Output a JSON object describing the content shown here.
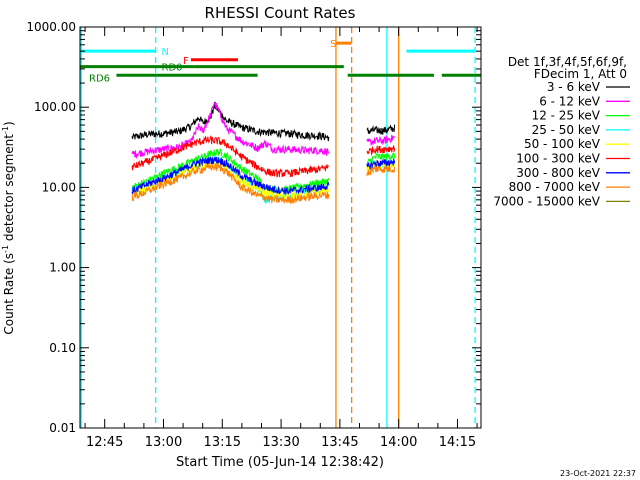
{
  "chart_data": {
    "type": "line",
    "title": "RHESSI Count Rates",
    "xlabel": "Start Time (05-Jun-14 12:38:42)",
    "ylabel_main": "Count Rate (s",
    "ylabel_sup": "-1",
    "ylabel_tail": " detector segment",
    "ylabel_sup2": "-1",
    "ylabel_close": ")",
    "ylim": [
      0.01,
      1000
    ],
    "yscale": "log",
    "y_ticks": [
      {
        "value": 0.01,
        "label": "0.01"
      },
      {
        "value": 0.1,
        "label": "0.10"
      },
      {
        "value": 1,
        "label": "1.00"
      },
      {
        "value": 10,
        "label": "10.00"
      },
      {
        "value": 100,
        "label": "100.00"
      },
      {
        "value": 1000,
        "label": "1000.00"
      }
    ],
    "xlim_min": [
      38.7,
      141
    ],
    "x_ticks": [
      {
        "min": 45,
        "label": "12:45"
      },
      {
        "min": 60,
        "label": "13:00"
      },
      {
        "min": 75,
        "label": "13:15"
      },
      {
        "min": 90,
        "label": "13:30"
      },
      {
        "min": 105,
        "label": "13:45"
      },
      {
        "min": 120,
        "label": "14:00"
      },
      {
        "min": 135,
        "label": "14:15"
      }
    ],
    "legend_header": [
      "Det 1f,3f,4f,5f,6f,9f,",
      "FDecim 1, Att 0"
    ],
    "series": [
      {
        "name": "3 - 6 keV",
        "color": "#000000",
        "points": [
          [
            52,
            42
          ],
          [
            56,
            46
          ],
          [
            60,
            47
          ],
          [
            64,
            50
          ],
          [
            67,
            58
          ],
          [
            69,
            75
          ],
          [
            70,
            64
          ],
          [
            72,
            74
          ],
          [
            73,
            105
          ],
          [
            74,
            92
          ],
          [
            76,
            68
          ],
          [
            80,
            56
          ],
          [
            84,
            50
          ],
          [
            88,
            48
          ],
          [
            92,
            47
          ],
          [
            96,
            45
          ],
          [
            100,
            44
          ],
          [
            102,
            42
          ],
          [
            112,
            50
          ],
          [
            114,
            52
          ],
          [
            116,
            51
          ],
          [
            119,
            55
          ]
        ]
      },
      {
        "name": "6 - 12 keV",
        "color": "#ff00ff",
        "points": [
          [
            52,
            26
          ],
          [
            56,
            28
          ],
          [
            60,
            30
          ],
          [
            64,
            32
          ],
          [
            67,
            37
          ],
          [
            69,
            58
          ],
          [
            70,
            50
          ],
          [
            72,
            80
          ],
          [
            73,
            115
          ],
          [
            74,
            92
          ],
          [
            76,
            55
          ],
          [
            80,
            38
          ],
          [
            84,
            31
          ],
          [
            86,
            36
          ],
          [
            88,
            30
          ],
          [
            92,
            30
          ],
          [
            96,
            29
          ],
          [
            100,
            29
          ],
          [
            102,
            28
          ],
          [
            112,
            36
          ],
          [
            114,
            38
          ],
          [
            116,
            38
          ],
          [
            119,
            42
          ]
        ]
      },
      {
        "name": "12 - 25 keV",
        "color": "#00ff00",
        "points": [
          [
            52,
            10
          ],
          [
            56,
            12
          ],
          [
            60,
            15
          ],
          [
            64,
            18
          ],
          [
            68,
            22
          ],
          [
            72,
            26
          ],
          [
            74,
            28
          ],
          [
            76,
            25
          ],
          [
            80,
            17
          ],
          [
            84,
            13
          ],
          [
            86,
            10
          ],
          [
            88,
            9.5
          ],
          [
            92,
            9.5
          ],
          [
            96,
            10.5
          ],
          [
            100,
            11.5
          ],
          [
            102,
            12
          ],
          [
            112,
            20
          ],
          [
            114,
            24
          ],
          [
            116,
            24
          ],
          [
            119,
            25
          ]
        ]
      },
      {
        "name": "25 - 50 keV",
        "color": "#00ffff",
        "points": [
          [
            52,
            9
          ],
          [
            56,
            11
          ],
          [
            60,
            13
          ],
          [
            64,
            16
          ],
          [
            68,
            19
          ],
          [
            72,
            22
          ],
          [
            74,
            22
          ],
          [
            76,
            20
          ],
          [
            80,
            13
          ],
          [
            84,
            10
          ],
          [
            86,
            7
          ],
          [
            88,
            7.5
          ],
          [
            92,
            8
          ],
          [
            96,
            9
          ],
          [
            100,
            9.5
          ],
          [
            102,
            10
          ],
          [
            112,
            18
          ],
          [
            114,
            20
          ],
          [
            116,
            19.5
          ],
          [
            119,
            20
          ]
        ]
      },
      {
        "name": "50 - 100 keV",
        "color": "#ffff00",
        "points": [
          [
            52,
            8.5
          ],
          [
            56,
            10
          ],
          [
            60,
            12
          ],
          [
            64,
            15
          ],
          [
            68,
            18
          ],
          [
            72,
            20
          ],
          [
            74,
            20
          ],
          [
            76,
            18
          ],
          [
            80,
            12
          ],
          [
            84,
            9.5
          ],
          [
            88,
            8
          ],
          [
            92,
            8
          ],
          [
            96,
            8.5
          ],
          [
            100,
            9
          ],
          [
            102,
            9.5
          ],
          [
            112,
            17
          ],
          [
            114,
            19
          ],
          [
            116,
            19
          ],
          [
            119,
            19
          ]
        ]
      },
      {
        "name": "100 - 300 keV",
        "color": "#ff0000",
        "points": [
          [
            52,
            18
          ],
          [
            56,
            21
          ],
          [
            60,
            25
          ],
          [
            64,
            30
          ],
          [
            68,
            36
          ],
          [
            71,
            39
          ],
          [
            74,
            38
          ],
          [
            76,
            35
          ],
          [
            80,
            24
          ],
          [
            84,
            18
          ],
          [
            86,
            16
          ],
          [
            88,
            15
          ],
          [
            92,
            15
          ],
          [
            96,
            16
          ],
          [
            100,
            17
          ],
          [
            102,
            18
          ],
          [
            112,
            28
          ],
          [
            114,
            30
          ],
          [
            116,
            30
          ],
          [
            119,
            31
          ]
        ]
      },
      {
        "name": "300 - 800 keV",
        "color": "#0000ff",
        "points": [
          [
            52,
            9
          ],
          [
            56,
            11
          ],
          [
            60,
            13
          ],
          [
            64,
            16
          ],
          [
            68,
            20
          ],
          [
            72,
            22
          ],
          [
            74,
            22
          ],
          [
            76,
            20
          ],
          [
            80,
            14
          ],
          [
            84,
            11
          ],
          [
            88,
            9.5
          ],
          [
            92,
            9
          ],
          [
            96,
            9.5
          ],
          [
            100,
            10
          ],
          [
            102,
            10.5
          ],
          [
            112,
            18
          ],
          [
            114,
            20
          ],
          [
            116,
            20
          ],
          [
            119,
            21
          ]
        ]
      },
      {
        "name": "800 - 7000 keV",
        "color": "#ff8000",
        "points": [
          [
            52,
            7.5
          ],
          [
            56,
            9
          ],
          [
            60,
            11
          ],
          [
            64,
            13
          ],
          [
            68,
            16
          ],
          [
            72,
            18
          ],
          [
            74,
            18
          ],
          [
            76,
            16
          ],
          [
            80,
            10
          ],
          [
            84,
            8
          ],
          [
            88,
            7
          ],
          [
            92,
            7
          ],
          [
            96,
            7.5
          ],
          [
            100,
            8
          ],
          [
            102,
            8
          ],
          [
            112,
            15
          ],
          [
            114,
            17
          ],
          [
            116,
            17
          ],
          [
            119,
            17
          ]
        ]
      },
      {
        "name": "7000 - 15000 keV",
        "color": "#808000",
        "points": []
      }
    ],
    "flags": [
      {
        "label": "N",
        "color": "#00ffff",
        "y": 500,
        "segments": [
          [
            38.7,
            58
          ],
          [
            122,
            139.5
          ]
        ]
      },
      {
        "label": "RD0",
        "color": "#008000",
        "y": 320,
        "segments": [
          [
            38.7,
            68
          ],
          [
            68,
            106
          ]
        ]
      },
      {
        "label": "RD6",
        "color": "#008000",
        "y": 250,
        "segments": [
          [
            48,
            84
          ],
          [
            107,
            129
          ],
          [
            131,
            141
          ]
        ]
      },
      {
        "label": "F",
        "color": "#ff0000",
        "y": 390,
        "segments": [
          [
            67,
            79
          ]
        ]
      },
      {
        "label": "S",
        "color": "#ff8000",
        "y": 630,
        "segments": [
          [
            104,
            108
          ]
        ]
      }
    ],
    "vlines": [
      {
        "min": 39.0,
        "color": "#00ffff",
        "style": "solid"
      },
      {
        "min": 58,
        "color": "#00ffff",
        "style": "dashed"
      },
      {
        "min": 104,
        "color": "#ff8000",
        "style": "solid"
      },
      {
        "min": 108,
        "color": "#ff8000",
        "style": "dashed"
      },
      {
        "min": 117,
        "color": "#00ffff",
        "style": "solid"
      },
      {
        "min": 120,
        "color": "#ff8000",
        "style": "solid"
      },
      {
        "min": 139.5,
        "color": "#00ffff",
        "style": "dashed"
      }
    ],
    "footer_date": "23-Oct-2021 22:37"
  }
}
